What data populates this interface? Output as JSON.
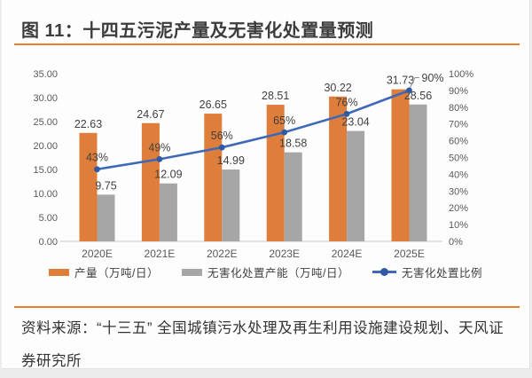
{
  "header": {
    "figure_title": "图 11：十四五污泥产量及无害化处置量预测"
  },
  "source": {
    "text": "资料来源：“十三五” 全国城镇污水处理及再生利用设施建设规划、天风证券研究所"
  },
  "colors": {
    "accent_orange": "#e87e2c",
    "bar_orange": "#df7e3b",
    "bar_gray": "#a6a6a6",
    "line_blue": "#3e68b8",
    "marker_blue": "#2f5aa5",
    "axis_text": "#595959",
    "label_text": "#404040",
    "baseline": "#c6c6c6"
  },
  "chart_data": {
    "type": "bar",
    "combo": "bar+line",
    "title": "十四五污泥产量及无害化处置量预测",
    "categories": [
      "2020E",
      "2021E",
      "2022E",
      "2023E",
      "2024E",
      "2025E"
    ],
    "series": [
      {
        "name": "产量（万吨/日）",
        "type": "bar",
        "axis": "left",
        "color": "#df7e3b",
        "values": [
          22.63,
          24.67,
          26.65,
          28.51,
          30.22,
          31.73
        ],
        "labels": [
          "22.63",
          "24.67",
          "26.65",
          "28.51",
          "30.22",
          "31.73"
        ]
      },
      {
        "name": "无害化处置产能（万吨/日）",
        "type": "bar",
        "axis": "left",
        "color": "#a6a6a6",
        "values": [
          9.75,
          12.09,
          14.99,
          18.58,
          23.04,
          28.56
        ],
        "labels": [
          "9.75",
          "12.09",
          "14.99",
          "18.58",
          "23.04",
          "28.56"
        ]
      },
      {
        "name": "无害化处置比例",
        "type": "line",
        "axis": "right",
        "color": "#3e68b8",
        "marker_color": "#2f5aa5",
        "values": [
          43,
          49,
          56,
          65,
          76,
          90
        ],
        "labels": [
          "43%",
          "49%",
          "56%",
          "65%",
          "76%",
          "90%"
        ]
      }
    ],
    "left_axis": {
      "min": 0,
      "max": 35,
      "step": 5,
      "tick_labels": [
        "35.00",
        "30.00",
        "25.00",
        "20.00",
        "15.00",
        "10.00",
        "5.00",
        "0.00"
      ]
    },
    "right_axis": {
      "min": 0,
      "max": 100,
      "step": 10,
      "tick_labels": [
        "100%",
        "90%",
        "80%",
        "70%",
        "60%",
        "50%",
        "40%",
        "30%",
        "20%",
        "10%",
        "0%"
      ]
    },
    "grid": false,
    "legend_position": "bottom"
  }
}
